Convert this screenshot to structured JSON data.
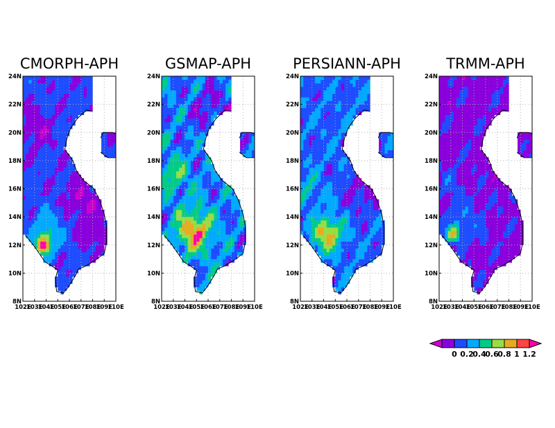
{
  "chart_data": {
    "type": "heatmap",
    "panels": [
      {
        "title": "CMORPH-APH",
        "pattern": "cmorph"
      },
      {
        "title": "GSMAP-APH",
        "pattern": "gsmap"
      },
      {
        "title": "PERSIANN-APH",
        "pattern": "persiann"
      },
      {
        "title": "TRMM-APH",
        "pattern": "trmm"
      }
    ],
    "y_ticks": [
      "8N",
      "10N",
      "12N",
      "14N",
      "16N",
      "18N",
      "20N",
      "22N",
      "24N"
    ],
    "x_ticks": [
      "102E",
      "103E",
      "104E",
      "105E",
      "106E",
      "107E",
      "108E",
      "109E",
      "110E"
    ],
    "ylim": [
      8,
      24
    ],
    "xlim": [
      102,
      110
    ],
    "grid": true,
    "colorbar": {
      "labels": [
        "0",
        "0.2",
        "0.4",
        "0.6",
        "0.8",
        "1",
        "1.2"
      ],
      "colors": [
        "#cc00cc",
        "#8a00dd",
        "#1e4cff",
        "#00aaff",
        "#00cc88",
        "#99dd44",
        "#e8aa22",
        "#ff4444",
        "#ff00aa"
      ]
    }
  }
}
